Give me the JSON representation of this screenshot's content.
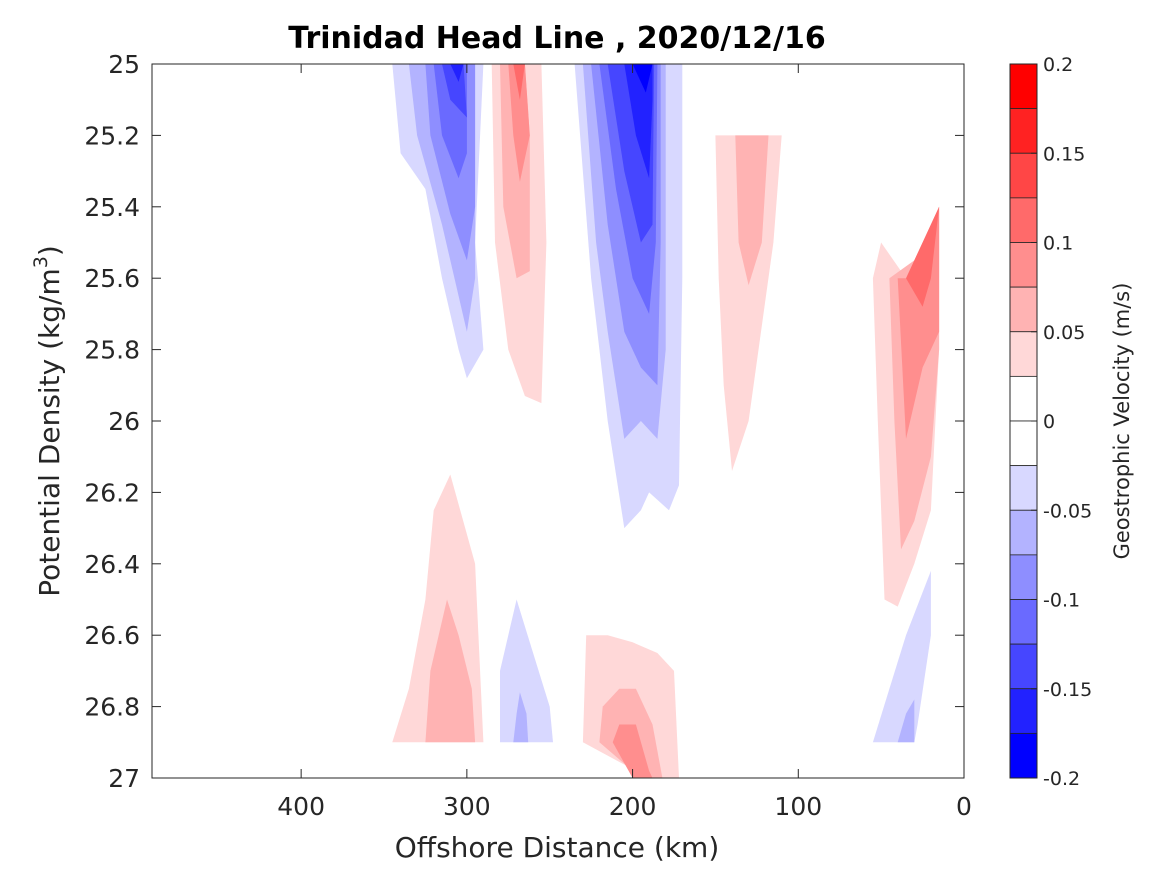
{
  "chart_data": {
    "type": "heatmap",
    "subtype": "filled-contour",
    "title": "Trinidad Head Line , 2020/12/16",
    "xlabel": "Offshore Distance (km)",
    "ylabel_main": "Potential Density (kg/m",
    "ylabel_sup": "3",
    "ylabel_close": ")",
    "x_reversed": true,
    "y_reversed": true,
    "xlim": [
      0,
      490
    ],
    "ylim": [
      25,
      27
    ],
    "x_ticks": [
      400,
      300,
      200,
      100,
      0
    ],
    "y_ticks": [
      "25",
      "25.2",
      "25.4",
      "25.6",
      "25.8",
      "26",
      "26.2",
      "26.4",
      "26.6",
      "26.8",
      "27"
    ],
    "grid": false,
    "colorbar": {
      "label": "Geostrophic Velocity (m/s)",
      "range": [
        -0.2,
        0.2
      ],
      "step": 0.025,
      "tick_labels": [
        "0.2",
        "0.15",
        "0.1",
        "0.05",
        "0",
        "-0.05",
        "-0.1",
        "-0.15",
        "-0.2"
      ],
      "colors": [
        "#0000ff",
        "#2222ff",
        "#4646ff",
        "#6a6aff",
        "#8e8eff",
        "#b3b3ff",
        "#d8d8ff",
        "#ffffff",
        "#ffffff",
        "#ffd8d8",
        "#ffb3b3",
        "#ff8e8e",
        "#ff6a6a",
        "#ff4646",
        "#ff2222",
        "#ff0000"
      ]
    },
    "contour_regions": [
      {
        "name": "neg-core-310km-outer",
        "level": -0.025,
        "points": [
          [
            345,
            25
          ],
          [
            340,
            25.25
          ],
          [
            325,
            25.35
          ],
          [
            315,
            25.6
          ],
          [
            305,
            25.8
          ],
          [
            300,
            25.88
          ],
          [
            290,
            25.8
          ],
          [
            295,
            25.5
          ],
          [
            290,
            25
          ],
          [
            345,
            25
          ]
        ]
      },
      {
        "name": "neg-core-310km-l2",
        "level": -0.05,
        "points": [
          [
            335,
            25
          ],
          [
            330,
            25.2
          ],
          [
            315,
            25.45
          ],
          [
            305,
            25.65
          ],
          [
            300,
            25.75
          ],
          [
            295,
            25.6
          ],
          [
            295,
            25.3
          ],
          [
            295,
            25
          ],
          [
            335,
            25
          ]
        ]
      },
      {
        "name": "neg-core-310km-l3",
        "level": -0.075,
        "points": [
          [
            325,
            25
          ],
          [
            322,
            25.2
          ],
          [
            310,
            25.42
          ],
          [
            300,
            25.55
          ],
          [
            295,
            25.4
          ],
          [
            295,
            25.15
          ],
          [
            295,
            25
          ],
          [
            325,
            25
          ]
        ]
      },
      {
        "name": "neg-core-310km-l4",
        "level": -0.1,
        "points": [
          [
            320,
            25
          ],
          [
            315,
            25.2
          ],
          [
            305,
            25.32
          ],
          [
            300,
            25.25
          ],
          [
            300,
            25
          ],
          [
            320,
            25
          ]
        ]
      },
      {
        "name": "neg-core-310km-l5",
        "level": -0.125,
        "points": [
          [
            315,
            25
          ],
          [
            310,
            25.1
          ],
          [
            300,
            25.15
          ],
          [
            302,
            25
          ],
          [
            315,
            25
          ]
        ]
      },
      {
        "name": "neg-core-310km-l6",
        "level": -0.15,
        "points": [
          [
            310,
            25
          ],
          [
            305,
            25.05
          ],
          [
            302,
            25
          ],
          [
            310,
            25
          ]
        ]
      },
      {
        "name": "pos-core-270km-outer",
        "level": 0.025,
        "points": [
          [
            285,
            25
          ],
          [
            283,
            25.5
          ],
          [
            275,
            25.8
          ],
          [
            265,
            25.93
          ],
          [
            255,
            25.95
          ],
          [
            252,
            25.5
          ],
          [
            255,
            25
          ],
          [
            285,
            25
          ]
        ]
      },
      {
        "name": "pos-core-270km-l2",
        "level": 0.05,
        "points": [
          [
            280,
            25
          ],
          [
            278,
            25.4
          ],
          [
            270,
            25.6
          ],
          [
            262,
            25.58
          ],
          [
            262,
            25.2
          ],
          [
            265,
            25
          ],
          [
            280,
            25
          ]
        ]
      },
      {
        "name": "pos-core-270km-l3",
        "level": 0.075,
        "points": [
          [
            275,
            25
          ],
          [
            272,
            25.2
          ],
          [
            268,
            25.33
          ],
          [
            262,
            25.2
          ],
          [
            265,
            25
          ],
          [
            275,
            25
          ]
        ]
      },
      {
        "name": "pos-core-270km-l4",
        "level": 0.1,
        "points": [
          [
            272,
            25
          ],
          [
            268,
            25.1
          ],
          [
            265,
            25
          ],
          [
            272,
            25
          ]
        ]
      },
      {
        "name": "neg-core-190km-outer",
        "level": -0.025,
        "points": [
          [
            235,
            25
          ],
          [
            225,
            25.6
          ],
          [
            220,
            25.8
          ],
          [
            215,
            26.0
          ],
          [
            210,
            26.15
          ],
          [
            205,
            26.3
          ],
          [
            195,
            26.25
          ],
          [
            190,
            26.2
          ],
          [
            178,
            26.25
          ],
          [
            172,
            26.18
          ],
          [
            170,
            25.6
          ],
          [
            170,
            25
          ],
          [
            235,
            25
          ]
        ]
      },
      {
        "name": "neg-core-190km-l2",
        "level": -0.05,
        "points": [
          [
            230,
            25
          ],
          [
            222,
            25.5
          ],
          [
            215,
            25.75
          ],
          [
            210,
            25.9
          ],
          [
            205,
            26.05
          ],
          [
            195,
            26.0
          ],
          [
            185,
            26.05
          ],
          [
            180,
            25.8
          ],
          [
            180,
            25
          ],
          [
            230,
            25
          ]
        ]
      },
      {
        "name": "neg-core-190km-l3",
        "level": -0.075,
        "points": [
          [
            225,
            25
          ],
          [
            215,
            25.45
          ],
          [
            205,
            25.75
          ],
          [
            195,
            25.85
          ],
          [
            185,
            25.9
          ],
          [
            183,
            25.5
          ],
          [
            183,
            25
          ],
          [
            225,
            25
          ]
        ]
      },
      {
        "name": "neg-core-190km-l4",
        "level": -0.1,
        "points": [
          [
            220,
            25
          ],
          [
            210,
            25.35
          ],
          [
            200,
            25.6
          ],
          [
            190,
            25.7
          ],
          [
            186,
            25.5
          ],
          [
            185,
            25
          ],
          [
            220,
            25
          ]
        ]
      },
      {
        "name": "neg-core-190km-l5",
        "level": -0.125,
        "points": [
          [
            215,
            25
          ],
          [
            205,
            25.3
          ],
          [
            195,
            25.5
          ],
          [
            188,
            25.45
          ],
          [
            187,
            25
          ],
          [
            215,
            25
          ]
        ]
      },
      {
        "name": "neg-core-190km-l6",
        "level": -0.15,
        "points": [
          [
            205,
            25
          ],
          [
            198,
            25.2
          ],
          [
            190,
            25.32
          ],
          [
            188,
            25.1
          ],
          [
            188,
            25
          ],
          [
            205,
            25
          ]
        ]
      },
      {
        "name": "neg-core-190km-l7",
        "level": -0.175,
        "points": [
          [
            200,
            25
          ],
          [
            192,
            25.08
          ],
          [
            188,
            25
          ],
          [
            200,
            25
          ]
        ]
      },
      {
        "name": "pos-core-130km-outer",
        "level": 0.025,
        "points": [
          [
            150,
            25.2
          ],
          [
            148,
            25.6
          ],
          [
            145,
            25.9
          ],
          [
            140,
            26.14
          ],
          [
            130,
            26.0
          ],
          [
            115,
            25.5
          ],
          [
            110,
            25.2
          ],
          [
            150,
            25.2
          ]
        ]
      },
      {
        "name": "pos-core-130km-l2",
        "level": 0.05,
        "points": [
          [
            138,
            25.2
          ],
          [
            136,
            25.5
          ],
          [
            130,
            25.62
          ],
          [
            122,
            25.5
          ],
          [
            118,
            25.2
          ],
          [
            138,
            25.2
          ]
        ]
      },
      {
        "name": "pos-core-40km-outer",
        "level": 0.025,
        "points": [
          [
            55,
            25.6
          ],
          [
            52,
            26.0
          ],
          [
            48,
            26.5
          ],
          [
            40,
            26.52
          ],
          [
            30,
            26.4
          ],
          [
            20,
            26.25
          ],
          [
            15,
            25.8
          ],
          [
            15,
            25.4
          ],
          [
            25,
            25.5
          ],
          [
            35,
            25.6
          ],
          [
            50,
            25.5
          ],
          [
            55,
            25.6
          ]
        ]
      },
      {
        "name": "pos-core-40km-l2",
        "level": 0.05,
        "points": [
          [
            45,
            25.6
          ],
          [
            42,
            26.0
          ],
          [
            38,
            26.36
          ],
          [
            30,
            26.28
          ],
          [
            20,
            26.1
          ],
          [
            15,
            25.8
          ],
          [
            15,
            25.4
          ],
          [
            30,
            25.55
          ],
          [
            45,
            25.6
          ]
        ]
      },
      {
        "name": "pos-core-40km-l3",
        "level": 0.075,
        "points": [
          [
            40,
            25.6
          ],
          [
            35,
            26.05
          ],
          [
            25,
            25.85
          ],
          [
            15,
            25.75
          ],
          [
            15,
            25.4
          ],
          [
            30,
            25.6
          ],
          [
            40,
            25.6
          ]
        ]
      },
      {
        "name": "pos-core-40km-l4",
        "level": 0.1,
        "points": [
          [
            35,
            25.6
          ],
          [
            25,
            25.68
          ],
          [
            20,
            25.6
          ],
          [
            15,
            25.4
          ],
          [
            25,
            25.5
          ],
          [
            35,
            25.6
          ]
        ]
      },
      {
        "name": "pos-core-310km-deep-outer",
        "level": 0.025,
        "points": [
          [
            345,
            26.9
          ],
          [
            335,
            26.75
          ],
          [
            325,
            26.5
          ],
          [
            320,
            26.25
          ],
          [
            310,
            26.15
          ],
          [
            295,
            26.4
          ],
          [
            290,
            26.9
          ],
          [
            345,
            26.9
          ]
        ]
      },
      {
        "name": "pos-core-310km-deep-l2",
        "level": 0.05,
        "points": [
          [
            325,
            26.9
          ],
          [
            322,
            26.7
          ],
          [
            312,
            26.5
          ],
          [
            305,
            26.6
          ],
          [
            297,
            26.75
          ],
          [
            295,
            26.9
          ],
          [
            325,
            26.9
          ]
        ]
      },
      {
        "name": "neg-core-265km-deep-outer",
        "level": -0.025,
        "points": [
          [
            280,
            26.9
          ],
          [
            280,
            26.7
          ],
          [
            270,
            26.5
          ],
          [
            260,
            26.65
          ],
          [
            250,
            26.8
          ],
          [
            248,
            26.9
          ],
          [
            280,
            26.9
          ]
        ]
      },
      {
        "name": "neg-core-265km-deep-l2",
        "level": -0.05,
        "points": [
          [
            272,
            26.9
          ],
          [
            270,
            26.82
          ],
          [
            268,
            26.76
          ],
          [
            264,
            26.82
          ],
          [
            263,
            26.9
          ],
          [
            272,
            26.9
          ]
        ]
      },
      {
        "name": "pos-core-200km-deep-outer",
        "level": 0.025,
        "points": [
          [
            230,
            26.9
          ],
          [
            228,
            26.6
          ],
          [
            215,
            26.6
          ],
          [
            200,
            26.62
          ],
          [
            185,
            26.65
          ],
          [
            175,
            26.7
          ],
          [
            172,
            27
          ],
          [
            190,
            27
          ],
          [
            230,
            26.9
          ]
        ]
      },
      {
        "name": "pos-core-200km-deep-l2",
        "level": 0.05,
        "points": [
          [
            220,
            26.9
          ],
          [
            218,
            26.8
          ],
          [
            208,
            26.75
          ],
          [
            198,
            26.75
          ],
          [
            188,
            26.85
          ],
          [
            182,
            27
          ],
          [
            195,
            27
          ],
          [
            220,
            26.9
          ]
        ]
      },
      {
        "name": "pos-core-200km-deep-l3",
        "level": 0.075,
        "points": [
          [
            212,
            26.9
          ],
          [
            208,
            26.85
          ],
          [
            198,
            26.85
          ],
          [
            190,
            26.98
          ],
          [
            188,
            27
          ],
          [
            200,
            27
          ],
          [
            212,
            26.9
          ]
        ]
      },
      {
        "name": "neg-core-40km-deep-outer",
        "level": -0.025,
        "points": [
          [
            55,
            26.9
          ],
          [
            45,
            26.75
          ],
          [
            35,
            26.6
          ],
          [
            20,
            26.42
          ],
          [
            20,
            26.6
          ],
          [
            28,
            26.85
          ],
          [
            30,
            26.9
          ],
          [
            55,
            26.9
          ]
        ]
      },
      {
        "name": "neg-core-40km-deep-l2",
        "level": -0.05,
        "points": [
          [
            40,
            26.9
          ],
          [
            35,
            26.82
          ],
          [
            30,
            26.78
          ],
          [
            30,
            26.9
          ],
          [
            40,
            26.9
          ]
        ]
      }
    ]
  }
}
